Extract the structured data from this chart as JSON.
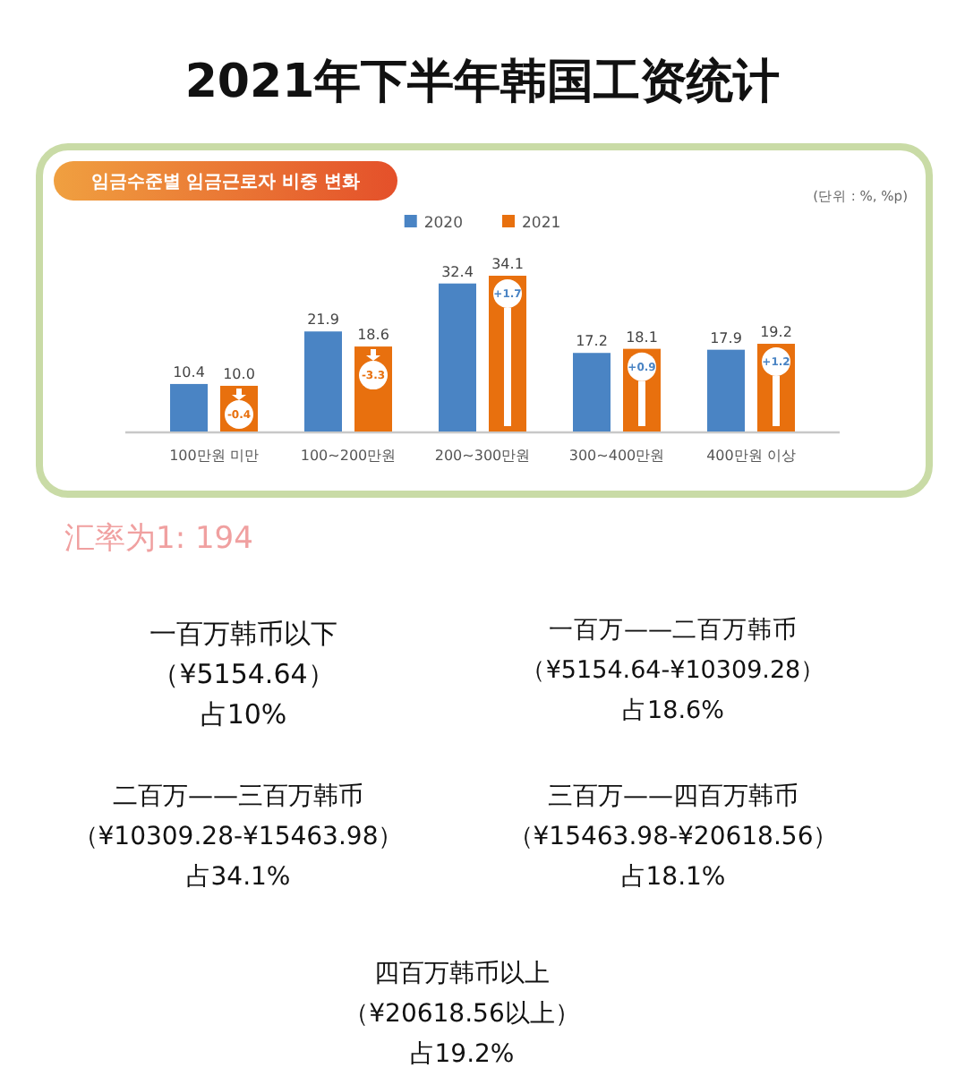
{
  "chart_data": {
    "type": "bar",
    "title": "2021年下半年韩国工资统计",
    "subtitle": "임금수준별 임금근로자 비중 변화",
    "categories": [
      "100만원 미만",
      "100~200만원",
      "200~300만원",
      "300~400만원",
      "400만원 이상"
    ],
    "series": [
      {
        "name": "2020",
        "color": "#4a84c4",
        "values": [
          10.4,
          21.9,
          32.4,
          17.2,
          17.9
        ],
        "value_labels": [
          "10.4",
          "21.9",
          "32.4",
          "17.2",
          "17.9"
        ]
      },
      {
        "name": "2021",
        "color": "#e8700e",
        "values": [
          10.0,
          18.6,
          34.1,
          18.1,
          19.2
        ],
        "value_labels": [
          "10.0",
          "18.6",
          "34.1",
          "18.1",
          "19.2"
        ]
      }
    ],
    "legend": "top",
    "annotations": [
      "(단위 : %, %p)",
      "汇率为1: 194",
      "一百万韩币以下",
      "（¥5154.64）",
      "占10%",
      "一百万——二百万韩币",
      "（¥5154.64-¥10309.28）",
      "占18.6%",
      "二百万——三百万韩币",
      "（¥10309.28-¥15463.98）",
      "占34.1%",
      "三百万——四百万韩币",
      "（¥15463.98-¥20618.56）",
      "占18.1%",
      "四百万韩币以上",
      "（¥20618.56以上）",
      "占19.2%",
      {
        "text": "-0.4",
        "x": "100만원 미만",
        "y": 10.0
      },
      {
        "text": "-3.3",
        "x": "100~200만원",
        "y": 18.6
      },
      {
        "text": "+1.7",
        "x": "200~300만원",
        "y": 34.1
      },
      {
        "text": "+0.9",
        "x": "300~400만원",
        "y": 18.1
      },
      {
        "text": "+1.2",
        "x": "400만원 이상",
        "y": 19.2
      }
    ]
  }
}
